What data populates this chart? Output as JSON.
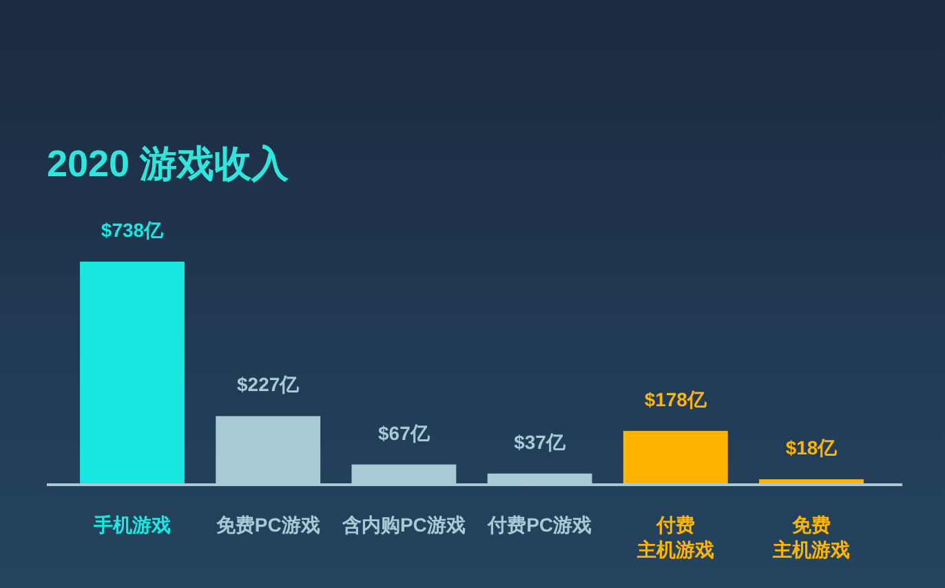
{
  "chart_data": {
    "type": "bar",
    "title": "2020 游戏收入",
    "categories": [
      "手机游戏",
      "免费PC游戏",
      "含内购PC游戏",
      "付费PC游戏",
      "付费主机游戏",
      "免费主机游戏"
    ],
    "values": [
      738,
      227,
      67,
      37,
      178,
      18
    ],
    "value_labels": [
      "$738亿",
      "$227亿",
      "$67亿",
      "$37亿",
      "$178亿",
      "$18亿"
    ],
    "colors": [
      "#19e8e0",
      "#a6cbd4",
      "#a6cbd4",
      "#a6cbd4",
      "#ffb400",
      "#ffb400"
    ]
  }
}
